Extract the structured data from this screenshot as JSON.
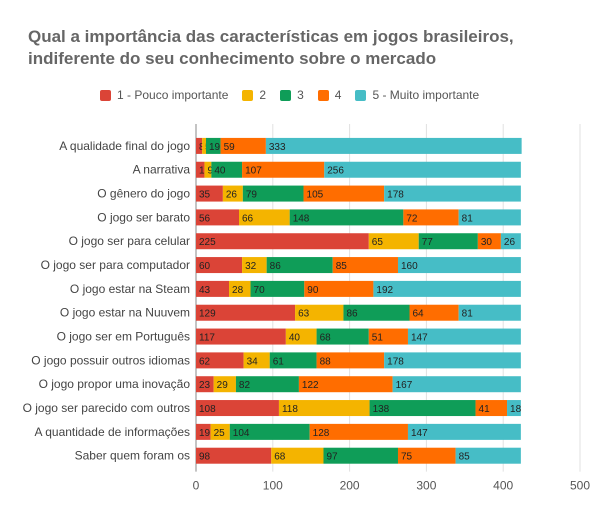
{
  "chart_data": {
    "type": "bar",
    "orientation": "horizontal",
    "stacked": true,
    "title": "Qual a importância das características em jogos brasileiros, indiferente do seu conhecimento sobre o mercado",
    "title_lines": [
      "Qual a importância das características em jogos brasileiros,",
      "indiferente do seu conhecimento sobre o mercado"
    ],
    "categories": [
      "A qualidade final do jogo",
      "A narrativa",
      "O gênero do jogo",
      "O jogo ser barato",
      "O jogo ser para celular",
      "O jogo ser para computador",
      "O jogo estar na Steam",
      "O jogo estar na Nuuvem",
      "O jogo ser em Português",
      "O jogo possuir outros idiomas",
      "O jogo propor uma inovação",
      "O jogo ser parecido com outros",
      "A quantidade de informações",
      "Saber quem foram os"
    ],
    "series": [
      {
        "name": "1 - Pouco importante",
        "color": "#db4437",
        "values": [
          8,
          11,
          35,
          56,
          225,
          60,
          43,
          129,
          117,
          62,
          23,
          108,
          19,
          98
        ]
      },
      {
        "name": "2",
        "color": "#f4b400",
        "values": [
          5,
          9,
          26,
          66,
          65,
          32,
          28,
          63,
          40,
          34,
          29,
          118,
          25,
          68
        ]
      },
      {
        "name": "3",
        "color": "#0f9d58",
        "values": [
          19,
          40,
          79,
          148,
          77,
          86,
          70,
          86,
          68,
          61,
          82,
          138,
          104,
          97
        ]
      },
      {
        "name": "4",
        "color": "#ff6d00",
        "values": [
          59,
          107,
          105,
          72,
          30,
          85,
          90,
          64,
          51,
          88,
          122,
          41,
          128,
          75
        ]
      },
      {
        "name": "5 - Muito importante",
        "color": "#46bdc6",
        "values": [
          333,
          256,
          178,
          81,
          26,
          160,
          192,
          81,
          147,
          178,
          167,
          18,
          147,
          85
        ]
      }
    ],
    "xlim": [
      0,
      500
    ],
    "xticks": [
      0,
      100,
      200,
      300,
      400,
      500
    ],
    "legend_position": "top",
    "grid": true
  }
}
